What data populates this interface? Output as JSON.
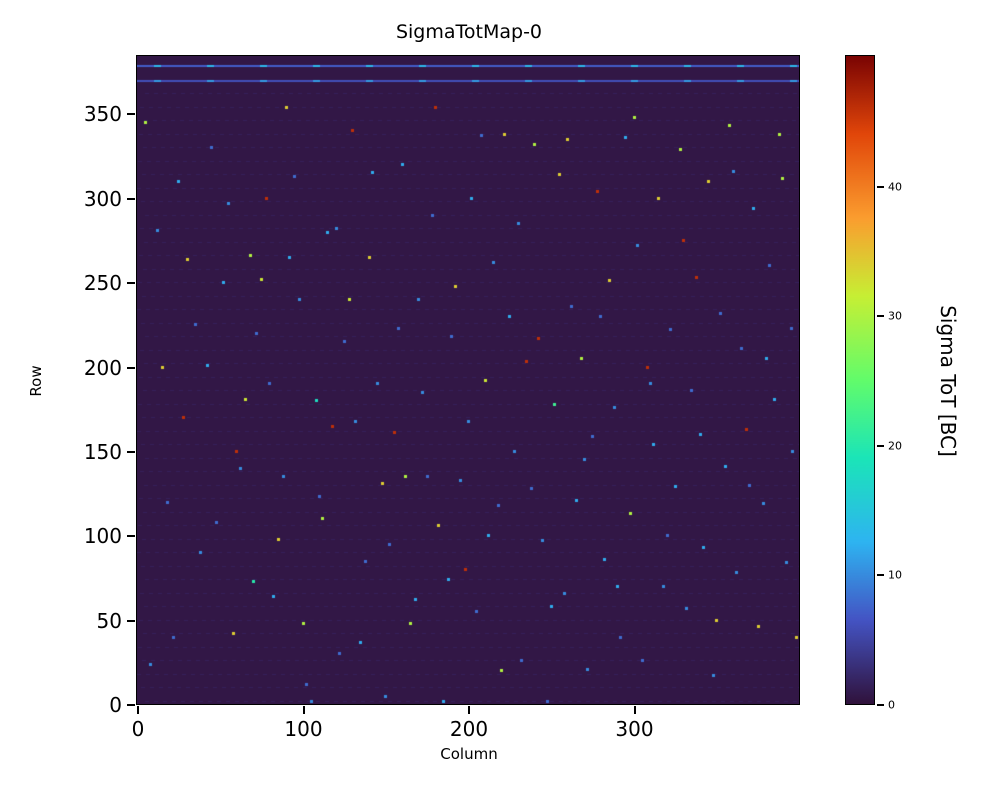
{
  "chart_data": {
    "type": "heatmap",
    "title": "SigmaTotMap-0",
    "xlabel": "Column",
    "ylabel": "Row",
    "xlim": [
      0,
      400
    ],
    "ylim": [
      0,
      384
    ],
    "x_ticks": [
      0,
      100,
      200,
      300
    ],
    "y_ticks": [
      0,
      50,
      100,
      150,
      200,
      250,
      300,
      350
    ],
    "grid": false,
    "background_value": 0.5,
    "colorbar": {
      "label": "Sigma ToT [BC]",
      "ticks": [
        0,
        10,
        20,
        30,
        40
      ],
      "vmin": 0,
      "vmax": 50,
      "colormap": "turbo",
      "stops": [
        [
          0.0,
          "#30123b"
        ],
        [
          0.13,
          "#4454c4"
        ],
        [
          0.25,
          "#2eb4f1"
        ],
        [
          0.38,
          "#1be5b8"
        ],
        [
          0.5,
          "#62fc6b"
        ],
        [
          0.63,
          "#c7ef34"
        ],
        [
          0.75,
          "#fb9d2f"
        ],
        [
          0.88,
          "#e1460a"
        ],
        [
          1.0,
          "#7a0403"
        ]
      ]
    },
    "row_streaks": {
      "period": 8,
      "start": 2,
      "value": 4,
      "alpha": 0.28
    },
    "lines": [
      {
        "row": 378,
        "value": 7,
        "dash_value": 13
      },
      {
        "row": 369,
        "value": 6,
        "dash_value": 11
      }
    ],
    "points": [
      [
        5,
        345,
        30
      ],
      [
        12,
        281,
        10
      ],
      [
        22,
        40,
        8
      ],
      [
        30,
        264,
        34
      ],
      [
        35,
        225,
        8
      ],
      [
        42,
        201,
        12
      ],
      [
        48,
        108,
        8
      ],
      [
        55,
        297,
        10
      ],
      [
        60,
        150,
        46
      ],
      [
        65,
        181,
        32
      ],
      [
        68,
        266,
        30
      ],
      [
        70,
        73,
        20
      ],
      [
        75,
        252,
        32
      ],
      [
        80,
        190,
        8
      ],
      [
        85,
        98,
        34
      ],
      [
        88,
        135,
        10
      ],
      [
        92,
        265,
        12
      ],
      [
        95,
        313,
        8
      ],
      [
        100,
        48,
        30
      ],
      [
        105,
        2,
        10
      ],
      [
        110,
        123,
        8
      ],
      [
        115,
        280,
        12
      ],
      [
        118,
        165,
        46
      ],
      [
        122,
        30,
        8
      ],
      [
        128,
        240,
        32
      ],
      [
        132,
        168,
        10
      ],
      [
        138,
        85,
        8
      ],
      [
        142,
        315,
        12
      ],
      [
        148,
        131,
        34
      ],
      [
        150,
        5,
        10
      ],
      [
        155,
        161,
        46
      ],
      [
        158,
        223,
        8
      ],
      [
        162,
        135,
        30
      ],
      [
        168,
        62,
        12
      ],
      [
        172,
        185,
        10
      ],
      [
        178,
        290,
        8
      ],
      [
        182,
        106,
        34
      ],
      [
        185,
        2,
        12
      ],
      [
        190,
        218,
        8
      ],
      [
        195,
        133,
        10
      ],
      [
        198,
        80,
        46
      ],
      [
        202,
        300,
        12
      ],
      [
        205,
        55,
        8
      ],
      [
        210,
        192,
        32
      ],
      [
        215,
        262,
        10
      ],
      [
        218,
        118,
        8
      ],
      [
        222,
        338,
        34
      ],
      [
        225,
        230,
        12
      ],
      [
        228,
        150,
        10
      ],
      [
        232,
        26,
        8
      ],
      [
        235,
        203,
        46
      ],
      [
        240,
        332,
        30
      ],
      [
        245,
        97,
        10
      ],
      [
        248,
        2,
        8
      ],
      [
        252,
        178,
        22
      ],
      [
        255,
        314,
        34
      ],
      [
        258,
        66,
        10
      ],
      [
        262,
        236,
        8
      ],
      [
        265,
        121,
        12
      ],
      [
        268,
        205,
        30
      ],
      [
        272,
        21,
        10
      ],
      [
        275,
        159,
        8
      ],
      [
        278,
        304,
        46
      ],
      [
        282,
        86,
        12
      ],
      [
        285,
        251,
        34
      ],
      [
        288,
        176,
        10
      ],
      [
        292,
        40,
        8
      ],
      [
        295,
        336,
        12
      ],
      [
        298,
        113,
        30
      ],
      [
        302,
        272,
        10
      ],
      [
        305,
        26,
        8
      ],
      [
        308,
        200,
        46
      ],
      [
        312,
        154,
        12
      ],
      [
        315,
        300,
        34
      ],
      [
        318,
        70,
        10
      ],
      [
        322,
        222,
        8
      ],
      [
        325,
        129,
        12
      ],
      [
        328,
        329,
        30
      ],
      [
        332,
        57,
        10
      ],
      [
        335,
        186,
        8
      ],
      [
        338,
        253,
        46
      ],
      [
        342,
        93,
        12
      ],
      [
        345,
        310,
        34
      ],
      [
        348,
        17,
        10
      ],
      [
        352,
        232,
        8
      ],
      [
        355,
        141,
        12
      ],
      [
        358,
        343,
        30
      ],
      [
        362,
        78,
        10
      ],
      [
        365,
        211,
        8
      ],
      [
        368,
        163,
        46
      ],
      [
        372,
        294,
        12
      ],
      [
        375,
        46,
        34
      ],
      [
        378,
        119,
        10
      ],
      [
        382,
        260,
        8
      ],
      [
        385,
        181,
        12
      ],
      [
        388,
        338,
        30
      ],
      [
        392,
        84,
        10
      ],
      [
        395,
        223,
        8
      ],
      [
        398,
        40,
        34
      ],
      [
        8,
        24,
        10
      ],
      [
        15,
        200,
        34
      ],
      [
        18,
        120,
        8
      ],
      [
        25,
        310,
        12
      ],
      [
        28,
        170,
        46
      ],
      [
        38,
        90,
        10
      ],
      [
        45,
        330,
        8
      ],
      [
        52,
        250,
        12
      ],
      [
        58,
        42,
        34
      ],
      [
        62,
        140,
        10
      ],
      [
        72,
        220,
        8
      ],
      [
        78,
        300,
        46
      ],
      [
        82,
        64,
        12
      ],
      [
        90,
        354,
        34
      ],
      [
        98,
        240,
        10
      ],
      [
        102,
        12,
        8
      ],
      [
        108,
        180,
        18
      ],
      [
        112,
        110,
        30
      ],
      [
        120,
        282,
        10
      ],
      [
        125,
        215,
        8
      ],
      [
        130,
        340,
        46
      ],
      [
        135,
        37,
        12
      ],
      [
        140,
        265,
        34
      ],
      [
        145,
        190,
        10
      ],
      [
        152,
        95,
        8
      ],
      [
        160,
        320,
        12
      ],
      [
        165,
        48,
        30
      ],
      [
        170,
        240,
        10
      ],
      [
        175,
        135,
        8
      ],
      [
        180,
        354,
        46
      ],
      [
        188,
        74,
        12
      ],
      [
        192,
        248,
        34
      ],
      [
        200,
        168,
        10
      ],
      [
        208,
        337,
        8
      ],
      [
        212,
        100,
        12
      ],
      [
        220,
        20,
        30
      ],
      [
        230,
        285,
        10
      ],
      [
        238,
        128,
        8
      ],
      [
        242,
        217,
        46
      ],
      [
        250,
        58,
        12
      ],
      [
        260,
        335,
        34
      ],
      [
        270,
        145,
        10
      ],
      [
        280,
        230,
        8
      ],
      [
        290,
        70,
        12
      ],
      [
        300,
        348,
        30
      ],
      [
        310,
        190,
        10
      ],
      [
        320,
        100,
        8
      ],
      [
        330,
        275,
        46
      ],
      [
        340,
        160,
        12
      ],
      [
        350,
        50,
        34
      ],
      [
        360,
        316,
        10
      ],
      [
        370,
        130,
        8
      ],
      [
        380,
        205,
        12
      ],
      [
        390,
        312,
        30
      ],
      [
        396,
        150,
        10
      ]
    ]
  }
}
